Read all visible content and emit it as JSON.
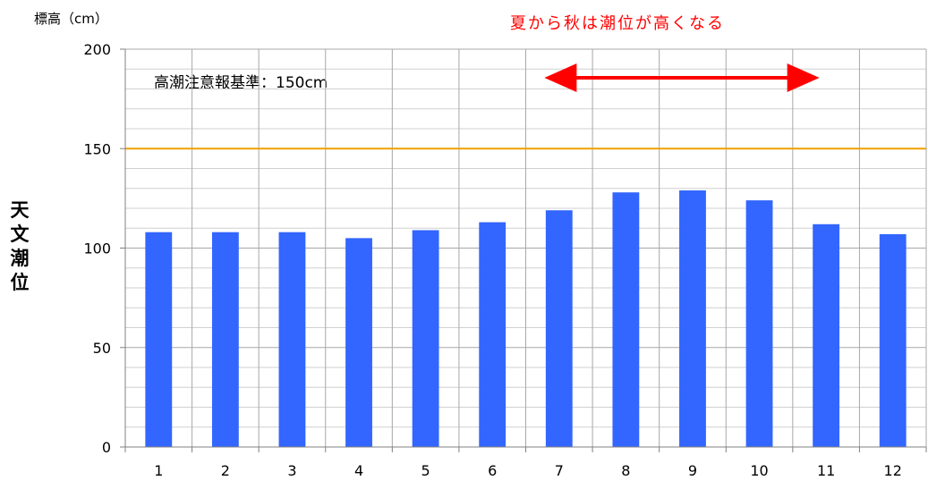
{
  "chart_data": {
    "type": "bar",
    "categories": [
      "1",
      "2",
      "3",
      "4",
      "5",
      "6",
      "7",
      "8",
      "9",
      "10",
      "11",
      "12"
    ],
    "values": [
      108,
      108,
      108,
      105,
      109,
      113,
      119,
      128,
      129,
      124,
      112,
      107
    ],
    "ylim": [
      0,
      200
    ],
    "yticks": [
      0,
      50,
      100,
      150,
      200
    ],
    "ylabel": "天文潮位",
    "unit_label": "標高（cm）",
    "grid": true,
    "bar_color": "#3366ff",
    "threshold": {
      "value": 150,
      "label": "高潮注意報基準：150cm",
      "color": "#f0a000"
    },
    "annotation": {
      "text": "夏から秋は潮位が高くなる",
      "color": "#ff0000",
      "arrow_from_category": "7",
      "arrow_to_category": "11"
    }
  }
}
